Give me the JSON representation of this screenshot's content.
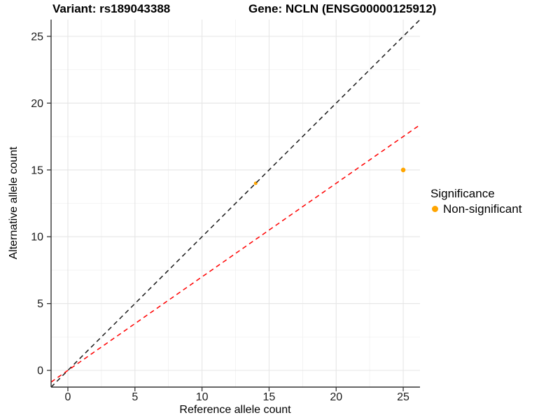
{
  "chart_data": {
    "type": "scatter",
    "title_left": "Variant: rs189043388",
    "title_right": "Gene: NCLN (ENSG00000125912)",
    "xlabel": "Reference allele count",
    "ylabel": "Alternative allele count",
    "xlim": [
      -1.25,
      26.25
    ],
    "ylim": [
      -1.25,
      26.25
    ],
    "x_ticks": [
      0,
      5,
      10,
      15,
      20,
      25
    ],
    "y_ticks": [
      0,
      5,
      10,
      15,
      20,
      25
    ],
    "x_minor_ticks": [
      2.5,
      7.5,
      12.5,
      17.5,
      22.5
    ],
    "y_minor_ticks": [
      2.5,
      7.5,
      12.5,
      17.5,
      22.5
    ],
    "grid": "major and minor, light gray on white panel",
    "series": [
      {
        "name": "Non-significant",
        "color": "#FFA500",
        "points": [
          {
            "x": 14,
            "y": 14,
            "radius": 2.5
          },
          {
            "x": 25,
            "y": 15,
            "radius": 3.3
          }
        ]
      }
    ],
    "lines": [
      {
        "name": "identity-line",
        "slope": 1,
        "intercept": 0,
        "color": "#1a1a1a",
        "style": "dashed"
      },
      {
        "name": "threshold-line",
        "slope": 0.7,
        "intercept": 0,
        "color": "#ff0000",
        "style": "dashed"
      }
    ],
    "legend": {
      "title": "Significance",
      "position": "right",
      "items": [
        {
          "label": "Non-significant",
          "color": "#FFA500"
        }
      ]
    }
  },
  "colors": {
    "point_orange": "#FFA500",
    "line_red": "#ff0000",
    "line_black": "#1a1a1a",
    "grid_major": "#e5e5e5",
    "grid_minor": "#f0f0f0",
    "axis_line": "#333333",
    "tick_mark": "#333333",
    "text": "#000000",
    "background": "#ffffff"
  }
}
